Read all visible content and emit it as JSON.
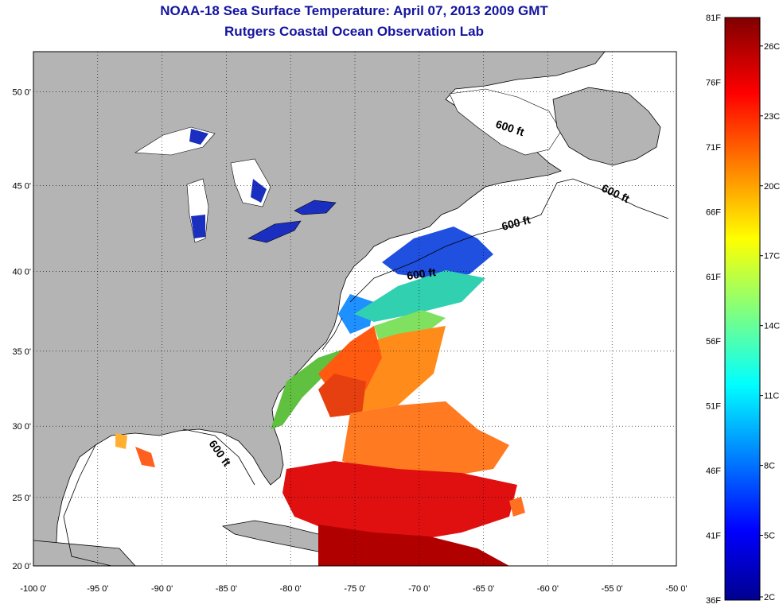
{
  "title": {
    "line1": "NOAA-18 Sea Surface Temperature:  April 07, 2013 2009 GMT",
    "line2": "Rutgers Coastal Ocean Observation Lab"
  },
  "map": {
    "lon_range": [
      -100,
      -50
    ],
    "lat_range": [
      20,
      52
    ],
    "lon_ticks": [
      "-100 0'",
      "-95 0'",
      "-90 0'",
      "-85 0'",
      "-80 0'",
      "-75 0'",
      "-70 0'",
      "-65 0'",
      "-60 0'",
      "-55 0'",
      "-50 0'"
    ],
    "lat_ticks": [
      "20 0'",
      "25 0'",
      "30 0'",
      "35 0'",
      "40 0'",
      "45 0'",
      "50 0'"
    ],
    "grid": "dotted",
    "contour_labels": [
      "600 ft",
      "600 ft",
      "600 ft",
      "600 ft",
      "600 ft"
    ],
    "colors": {
      "land": "#b4b4b4",
      "ocean_nodata": "#ffffff",
      "title": "#1414a0"
    }
  },
  "colorbar": {
    "f_labels": [
      "81F",
      "76F",
      "71F",
      "66F",
      "61F",
      "56F",
      "51F",
      "46F",
      "41F",
      "36F"
    ],
    "c_labels": [
      "26C",
      "23C",
      "20C",
      "17C",
      "14C",
      "11C",
      "8C",
      "5C",
      "2C"
    ],
    "colormap": "jet"
  }
}
